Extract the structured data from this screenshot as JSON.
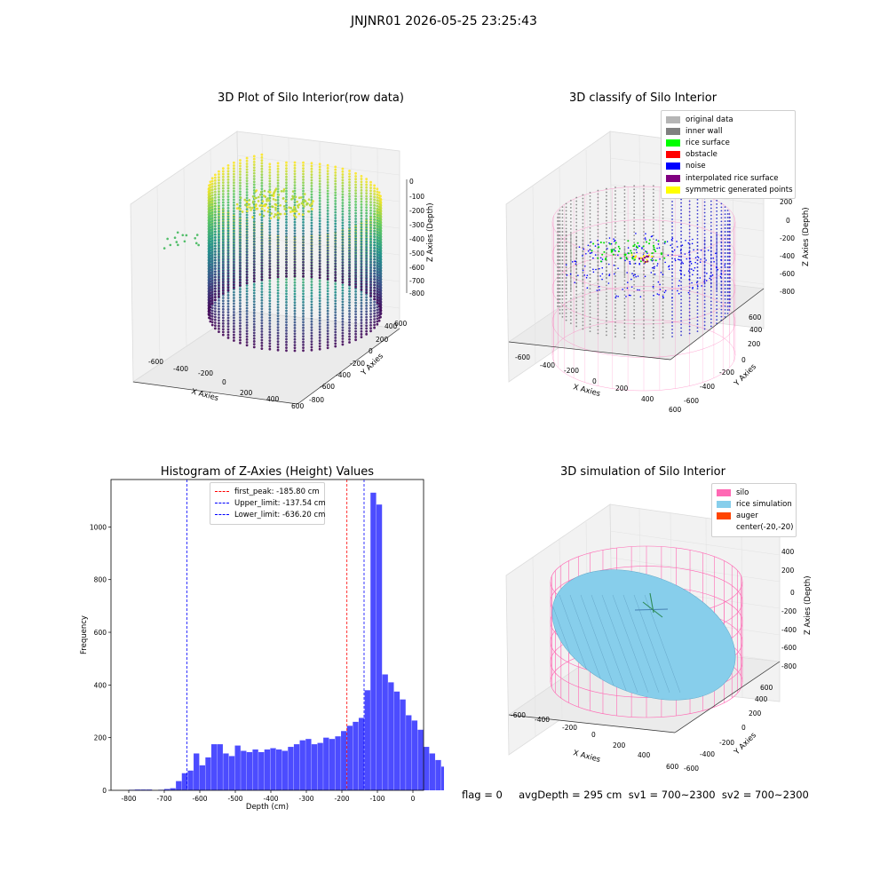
{
  "suptitle": "JNJNR01 2026-05-25 23:25:43",
  "footer": "flag = 0     avgDepth = 295 cm  sv1 = 700~2300  sv2 = 700~2300",
  "panel1": {
    "title": "3D Plot of Silo Interior(row data)",
    "xlabel": "X Axies",
    "ylabel": "Y Axies",
    "zlabel": "Z Axies (Depth)",
    "xticks": [
      "-600",
      "-400",
      "-200",
      "0",
      "200",
      "400",
      "600"
    ],
    "yticks": [
      "-800",
      "-600",
      "-400",
      "-200",
      "0",
      "200",
      "400",
      "600"
    ],
    "zticks": [
      "0",
      "-100",
      "-200",
      "-300",
      "-400",
      "-500",
      "-600",
      "-700",
      "-800"
    ]
  },
  "panel2": {
    "title": "3D classify of Silo Interior",
    "xlabel": "X Axies",
    "ylabel": "Y Axies",
    "zlabel": "Z Axies (Depth)",
    "xticks": [
      "-600",
      "-400",
      "-200",
      "0",
      "200",
      "400",
      "600"
    ],
    "yticks": [
      "-600",
      "-400",
      "-200",
      "0",
      "200",
      "400",
      "600"
    ],
    "zticks": [
      "400",
      "200",
      "0",
      "-200",
      "-400",
      "-600",
      "-800"
    ],
    "legend": [
      {
        "label": "original data",
        "color": "#b5b5b5"
      },
      {
        "label": "inner wall",
        "color": "#808080"
      },
      {
        "label": "rice surface",
        "color": "#00ff00"
      },
      {
        "label": "obstacle",
        "color": "#ff0000"
      },
      {
        "label": "noise",
        "color": "#0000ff"
      },
      {
        "label": "interpolated rice surface",
        "color": "#800080"
      },
      {
        "label": "symmetric generated points",
        "color": "#ffff00"
      }
    ]
  },
  "panel4": {
    "title": "3D simulation of Silo Interior",
    "xlabel": "X Axies",
    "ylabel": "Y Axies",
    "zlabel": "Z Axies (Depth)",
    "xticks": [
      "-600",
      "-400",
      "-200",
      "0",
      "200",
      "400",
      "600"
    ],
    "yticks": [
      "-600",
      "-400",
      "-200",
      "0",
      "200",
      "400",
      "600"
    ],
    "zticks": [
      "400",
      "200",
      "0",
      "-200",
      "-400",
      "-600",
      "-800"
    ],
    "legend": [
      {
        "label": "silo",
        "color": "#ff69b4"
      },
      {
        "label": "rice simulation",
        "color": "#87ceeb"
      },
      {
        "label": "auger",
        "color": "#ff4500"
      },
      {
        "label": "center(-20,-20)",
        "color": "#ffffff"
      }
    ]
  },
  "chart_data": {
    "type": "bar",
    "title": "Histogram of Z-Axies (Height) Values",
    "xlabel": "Depth (cm)",
    "ylabel": "Frequency",
    "xlim": [
      -850,
      30
    ],
    "ylim": [
      0,
      1180
    ],
    "xticks": [
      -800,
      -700,
      -600,
      -500,
      -400,
      -300,
      -200,
      -100,
      0
    ],
    "yticks": [
      0,
      200,
      400,
      600,
      800,
      1000
    ],
    "bin_width": 16.6,
    "bin_start": -800,
    "values": [
      2,
      3,
      3,
      3,
      0,
      2,
      5,
      8,
      35,
      65,
      75,
      140,
      95,
      125,
      175,
      175,
      140,
      130,
      170,
      150,
      145,
      155,
      145,
      155,
      160,
      155,
      150,
      165,
      175,
      190,
      195,
      175,
      180,
      200,
      195,
      205,
      225,
      245,
      260,
      275,
      380,
      1130,
      1085,
      440,
      410,
      375,
      345,
      285,
      265,
      230,
      165,
      140,
      115,
      90,
      40,
      10
    ],
    "color": "#0000ff",
    "lines": [
      {
        "label": "first_peak: -185.80 cm",
        "x": -185.8,
        "color": "#ff0000"
      },
      {
        "label": "Upper_limit: -137.54 cm",
        "x": -137.54,
        "color": "#0000ff"
      },
      {
        "label": "Lower_limit: -636.20 cm",
        "x": -636.2,
        "color": "#0000ff"
      }
    ]
  }
}
